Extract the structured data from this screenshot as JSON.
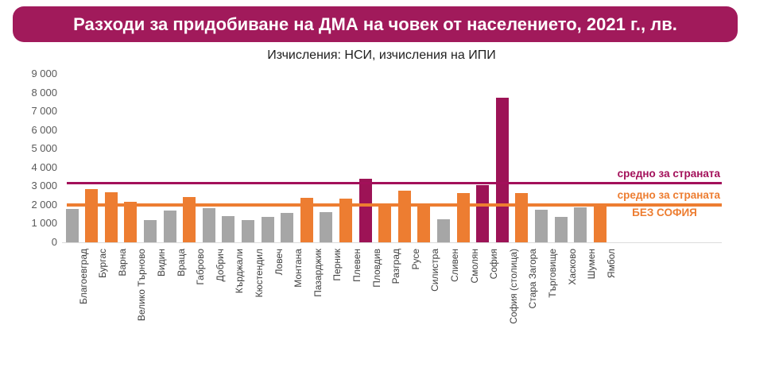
{
  "chart_data": {
    "type": "bar",
    "title": "Разходи за придобиване на ДМА на човек от населението, 2021 г., лв.",
    "subtitle": "Изчисления: НСИ, изчисления на ИПИ",
    "xlabel": "",
    "ylabel": "",
    "ylim": [
      0,
      9000
    ],
    "grid": false,
    "legend_position": "right-inside",
    "yticks": [
      {
        "label": "9 000",
        "value": 9000
      },
      {
        "label": "8 000",
        "value": 8000
      },
      {
        "label": "7 000",
        "value": 7000
      },
      {
        "label": "6 000",
        "value": 6000
      },
      {
        "label": "5 000",
        "value": 5000
      },
      {
        "label": "4 000",
        "value": 4000
      },
      {
        "label": "3 000",
        "value": 3000
      },
      {
        "label": "2 000",
        "value": 2000
      },
      {
        "label": "1 000",
        "value": 1000
      },
      {
        "label": "0",
        "value": 0
      }
    ],
    "categories": [
      "Благоевград",
      "Бургас",
      "Варна",
      "Велико Търново",
      "Видин",
      "Враца",
      "Габрово",
      "Добрич",
      "Кърджали",
      "Кюстендил",
      "Ловеч",
      "Монтана",
      "Пазарджик",
      "Перник",
      "Плевен",
      "Пловдив",
      "Разград",
      "Русе",
      "Силистра",
      "Сливен",
      "Смолян",
      "София",
      "София (столица)",
      "Стара Загора",
      "Търговище",
      "Хасково",
      "Шумен",
      "Ямбол"
    ],
    "values": [
      1770,
      2840,
      2670,
      2160,
      1200,
      1700,
      2420,
      1810,
      1410,
      1200,
      1350,
      1560,
      2380,
      1630,
      2330,
      3400,
      2040,
      2760,
      2020,
      1230,
      2650,
      3040,
      7740,
      2650,
      1730,
      1350,
      1870,
      2050
    ],
    "bar_colors": [
      "gray",
      "orange",
      "orange",
      "orange",
      "gray",
      "gray",
      "orange",
      "gray",
      "gray",
      "gray",
      "gray",
      "gray",
      "orange",
      "gray",
      "orange",
      "dark",
      "orange",
      "orange",
      "orange",
      "gray",
      "orange",
      "dark",
      "dark",
      "orange",
      "gray",
      "gray",
      "gray",
      "orange"
    ],
    "reference_lines": [
      {
        "label": "средно за страната",
        "value": 3170,
        "color_key": "avg_country"
      },
      {
        "label": "средно за страната БЕЗ СОФИЯ",
        "value": 2010,
        "color_key": "avg_nosofia"
      }
    ]
  },
  "legend": {
    "country": "средно за страната",
    "nosofia_line1": "средно за страната",
    "nosofia_line2": "БЕЗ СОФИЯ"
  },
  "colors": {
    "banner_bg": "#A11A5B",
    "banner_text": "#FFFFFF",
    "bar_gray": "#A6A6A6",
    "bar_orange": "#ED7D31",
    "bar_dark": "#9D1356",
    "avg_country": "#A3105A",
    "avg_nosofia": "#ED7D31",
    "axis_text": "#595959"
  }
}
